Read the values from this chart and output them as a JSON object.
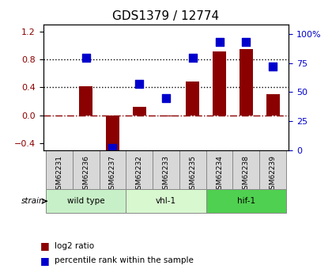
{
  "title": "GDS1379 / 12774",
  "samples": [
    "GSM62231",
    "GSM62236",
    "GSM62237",
    "GSM62232",
    "GSM62233",
    "GSM62235",
    "GSM62234",
    "GSM62238",
    "GSM62239"
  ],
  "log2_ratio": [
    0.0,
    0.42,
    -0.52,
    0.12,
    -0.02,
    0.48,
    0.92,
    0.95,
    0.3
  ],
  "percentile_rank": [
    null,
    80.0,
    2.0,
    57.0,
    45.0,
    80.0,
    93.0,
    93.0,
    72.0
  ],
  "groups": [
    {
      "label": "wild type",
      "start": 0,
      "end": 3,
      "color": "#c8f0c8"
    },
    {
      "label": "vhl-1",
      "start": 3,
      "end": 6,
      "color": "#d8f8d0"
    },
    {
      "label": "hif-1",
      "start": 6,
      "end": 9,
      "color": "#50d050"
    }
  ],
  "bar_color": "#8b0000",
  "dot_color": "#0000cd",
  "ylim_left": [
    -0.5,
    1.3
  ],
  "ylim_right": [
    0,
    108.3
  ],
  "yticks_left": [
    -0.4,
    0.0,
    0.4,
    0.8,
    1.2
  ],
  "yticks_right": [
    0,
    25,
    50,
    75,
    100
  ],
  "ytick_labels_right": [
    "0",
    "25",
    "50",
    "75",
    "100%"
  ],
  "hline_y": 0.0,
  "dotted_lines": [
    0.4,
    0.8
  ],
  "bar_width": 0.5,
  "dot_size": 60,
  "background_color": "#ffffff",
  "plot_bg_color": "#ffffff"
}
